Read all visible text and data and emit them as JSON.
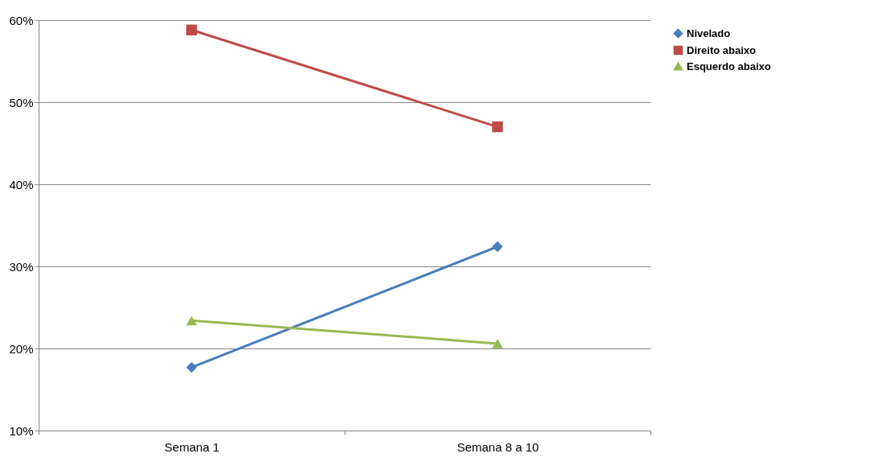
{
  "chart_data": {
    "type": "line",
    "categories": [
      "Semana 1",
      "Semana 8 a 10"
    ],
    "series": [
      {
        "name": "Nivelado",
        "color": "#4a7ebb",
        "values": [
          17.7,
          32.4
        ],
        "marker": "diamond"
      },
      {
        "name": "Direito abaixo",
        "color": "#be4b48",
        "values": [
          58.8,
          47.0
        ],
        "marker": "square"
      },
      {
        "name": "Esquerdo abaixo",
        "color": "#98b954",
        "values": [
          23.4,
          20.6
        ],
        "marker": "triangle"
      }
    ],
    "ylim": [
      10,
      60
    ],
    "yticks": [
      {
        "value": 10,
        "label": "10%"
      },
      {
        "value": 20,
        "label": "20%"
      },
      {
        "value": 30,
        "label": "30%"
      },
      {
        "value": 40,
        "label": "40%"
      },
      {
        "value": 50,
        "label": "50%"
      },
      {
        "value": 60,
        "label": "60%"
      }
    ],
    "grid": "y",
    "legend": "right",
    "line_style": "solid"
  }
}
